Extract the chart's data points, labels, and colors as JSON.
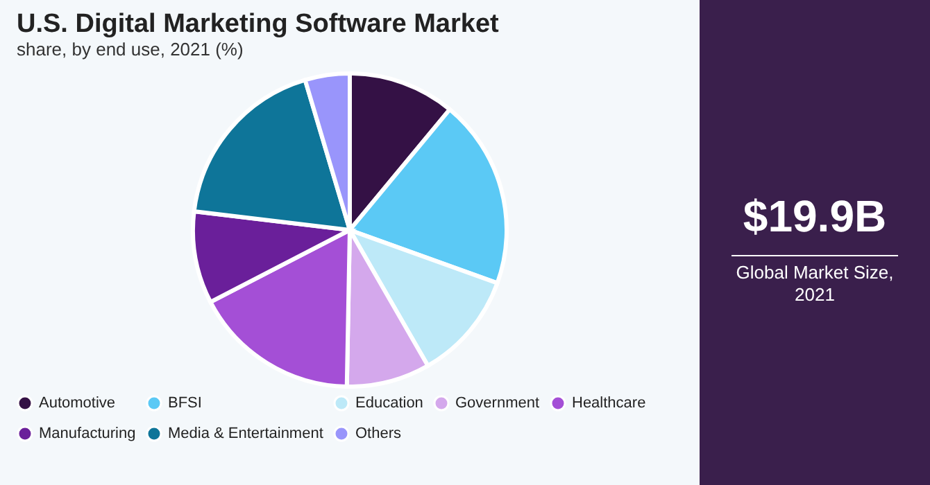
{
  "chart_data": {
    "type": "pie",
    "title": "U.S. Digital Marketing Software Market",
    "subtitle": "share, by end use, 2021 (%)",
    "categories": [
      "Automotive",
      "BFSI",
      "Education",
      "Government",
      "Healthcare",
      "Manufacturing",
      "Media & Entertainment",
      "Others"
    ],
    "values": [
      11,
      19.5,
      11.2,
      8.6,
      17.1,
      9.5,
      18.5,
      4.6
    ],
    "colors": [
      "#341145",
      "#5bc9f5",
      "#bde9f8",
      "#d4a8ec",
      "#a44fd6",
      "#6a1f9a",
      "#0e7599",
      "#9995fb"
    ],
    "legend": "bottom",
    "annotations": [
      "$19.9B",
      "Global Market Size, 2021"
    ]
  }
}
